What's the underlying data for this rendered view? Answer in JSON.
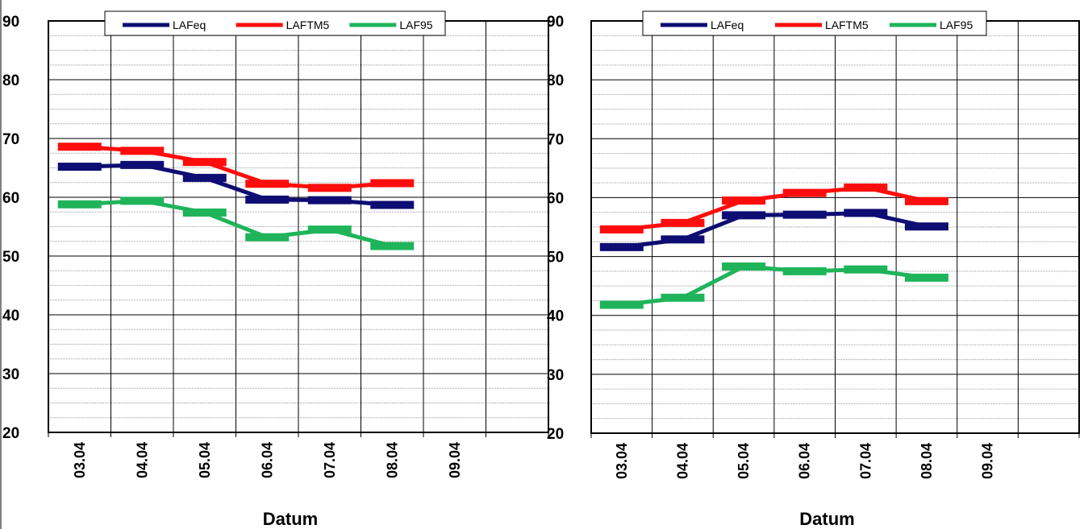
{
  "chart_data": [
    {
      "type": "line",
      "title": "",
      "xlabel": "Datum",
      "ylabel": "",
      "ylim": [
        20,
        90
      ],
      "yticks": [
        20,
        30,
        40,
        50,
        60,
        70,
        80,
        90
      ],
      "categories": [
        "03.04",
        "04.04",
        "05.04",
        "06.04",
        "07.04",
        "08.04",
        "09.04"
      ],
      "grid": true,
      "legend": "top",
      "series": [
        {
          "name": "LAFeq",
          "color": "#0d0d73",
          "values": [
            65.2,
            65.5,
            63.3,
            59.6,
            59.5,
            58.7,
            null
          ]
        },
        {
          "name": "LAFTM5",
          "color": "#ff0d0d",
          "values": [
            68.6,
            67.9,
            66.0,
            62.3,
            61.6,
            62.4,
            null
          ]
        },
        {
          "name": "LAF95",
          "color": "#1fb45a",
          "values": [
            58.8,
            59.4,
            57.4,
            53.2,
            54.5,
            51.7,
            null
          ]
        }
      ]
    },
    {
      "type": "line",
      "title": "",
      "xlabel": "Datum",
      "ylabel": "",
      "ylim": [
        20,
        90
      ],
      "yticks": [
        20,
        30,
        40,
        50,
        60,
        70,
        80,
        90
      ],
      "categories": [
        "03.04",
        "04.04",
        "05.04",
        "06.04",
        "07.04",
        "08.04",
        "09.04"
      ],
      "grid": true,
      "legend": "top",
      "series": [
        {
          "name": "LAFeq",
          "color": "#0d0d73",
          "values": [
            51.6,
            52.9,
            57.0,
            57.1,
            57.4,
            55.1,
            null
          ]
        },
        {
          "name": "LAFTM5",
          "color": "#ff0d0d",
          "values": [
            54.6,
            55.7,
            59.5,
            60.8,
            61.7,
            59.4,
            null
          ]
        },
        {
          "name": "LAF95",
          "color": "#1fb45a",
          "values": [
            41.8,
            43.0,
            48.3,
            47.5,
            47.8,
            46.4,
            null
          ]
        }
      ]
    }
  ]
}
